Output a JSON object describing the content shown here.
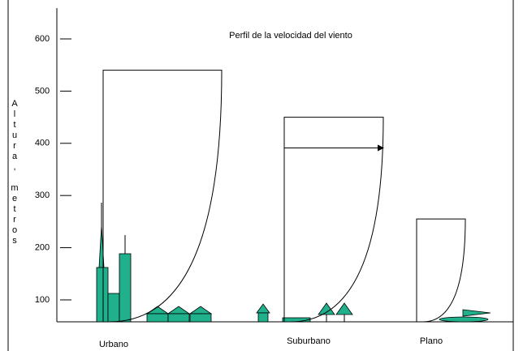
{
  "title": "Perfil de la velocidad del viento",
  "y_label": "Altura, metros",
  "y_axis": {
    "ylim": [
      58,
      659
    ],
    "yticks": [
      100,
      200,
      300,
      400,
      500,
      600
    ]
  },
  "profiles": [
    {
      "label": "Urbano",
      "height": 540
    },
    {
      "label": "Suburbano",
      "height": 450
    },
    {
      "label": "Plano",
      "height": 255
    }
  ]
}
